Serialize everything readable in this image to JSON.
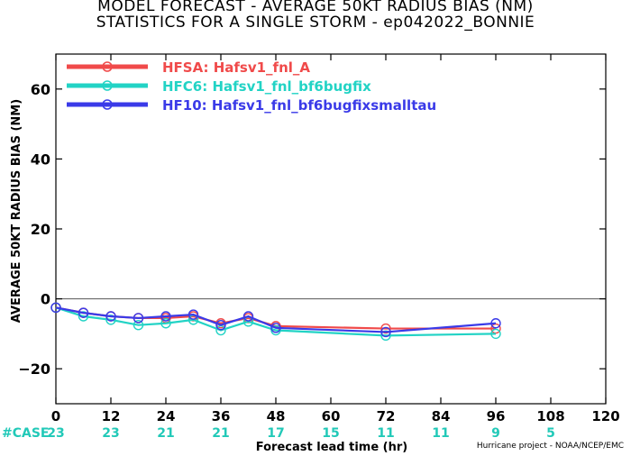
{
  "titles": {
    "line1": "MODEL FORECAST - AVERAGE 50KT RADIUS BIAS (NM)",
    "line2": "STATISTICS FOR A SINGLE STORM - ep042022_BONNIE"
  },
  "credit": "Hurricane project - NOAA/NCEP/EMC",
  "colors": {
    "HFSA": "#f04a4a",
    "HFC6": "#22d3c5",
    "HF10": "#3a3ae8",
    "case_label": "#22c9b8",
    "zero_line": "#555555"
  },
  "chart_data": {
    "type": "line",
    "title": "MODEL FORECAST - AVERAGE 50KT RADIUS BIAS (NM)",
    "subtitle": "STATISTICS FOR A SINGLE STORM - ep042022_BONNIE",
    "xlabel": "Forecast lead time (hr)",
    "ylabel": "AVERAGE 50KT RADIUS BIAS (NM)",
    "xlim": [
      0,
      120
    ],
    "ylim": [
      -30,
      70
    ],
    "xticks": [
      0,
      12,
      24,
      36,
      48,
      60,
      72,
      84,
      96,
      108,
      120
    ],
    "yticks": [
      -20,
      0,
      20,
      40,
      60
    ],
    "legend_position": "top-left",
    "series": [
      {
        "name": "HFSA: Hafsv1_fnl_A",
        "key": "HFSA",
        "x": [
          0,
          6,
          12,
          18,
          24,
          30,
          36,
          42,
          48,
          72,
          96
        ],
        "y": [
          -2.5,
          -4.0,
          -5.0,
          -5.5,
          -5.5,
          -5.0,
          -7.0,
          -5.5,
          -7.8,
          -8.5,
          -8.5
        ]
      },
      {
        "name": "HFC6: Hafsv1_fnl_bf6bugfix",
        "key": "HFC6",
        "x": [
          0,
          6,
          12,
          18,
          24,
          30,
          36,
          42,
          48,
          72,
          96
        ],
        "y": [
          -2.5,
          -5.0,
          -6.0,
          -7.5,
          -7.0,
          -6.0,
          -9.0,
          -6.5,
          -9.0,
          -10.5,
          -10.0
        ]
      },
      {
        "name": "HF10: Hafsv1_fnl_bf6bugfixsmalltau",
        "key": "HF10",
        "x": [
          0,
          6,
          12,
          18,
          24,
          30,
          36,
          42,
          48,
          72,
          96
        ],
        "y": [
          -2.5,
          -4.0,
          -5.0,
          -5.5,
          -5.0,
          -4.5,
          -7.5,
          -5.0,
          -8.3,
          -9.5,
          -7.0
        ]
      }
    ],
    "cases": {
      "label": "#CASE",
      "x": [
        0,
        12,
        24,
        36,
        48,
        60,
        72,
        84,
        96,
        108
      ],
      "values": [
        "23",
        "23",
        "21",
        "21",
        "17",
        "15",
        "11",
        "11",
        "9",
        "5"
      ]
    }
  }
}
